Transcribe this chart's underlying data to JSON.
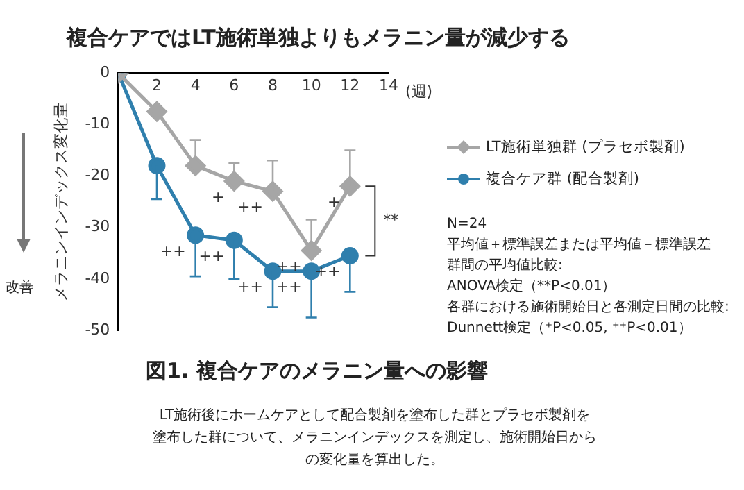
{
  "chart_data": {
    "type": "line",
    "title": "複合ケアではLT施術単独よりもメラニン量が減少する",
    "subtitle": "図1. 複合ケアのメラニン量への影響",
    "xlabel": "(週)",
    "ylabel": "メラニンインデックス変化量",
    "x": [
      0,
      2,
      4,
      6,
      8,
      10,
      12
    ],
    "series": [
      {
        "name": "LT施術単独群 (プラセボ製剤)",
        "color": "#a6a6a6",
        "marker": "diamond",
        "values": [
          0,
          -7.5,
          -18,
          -21,
          -23,
          -34.5,
          -22
        ],
        "errors": [
          null,
          null,
          [
            -18,
            -13
          ],
          [
            -21,
            -17.5
          ],
          [
            -23,
            -17
          ],
          [
            -34.5,
            -28.5
          ],
          [
            -22,
            -15
          ]
        ]
      },
      {
        "name": "複合ケア群 (配合製剤)",
        "color": "#2f7fad",
        "marker": "circle",
        "values": [
          0,
          -18,
          -31.5,
          -32.5,
          -38.5,
          -38.5,
          -35.5
        ],
        "errors": [
          null,
          [
            -24.5,
            -18
          ],
          [
            -39.5,
            -31.5
          ],
          [
            -40,
            -32.5
          ],
          [
            -45.5,
            -38.5
          ],
          [
            -47.5,
            -38.5
          ],
          [
            -42.5,
            -35.5
          ]
        ]
      }
    ],
    "xlim": [
      0,
      14
    ],
    "xticks": [
      {
        "value": 0,
        "label": null
      },
      2,
      4,
      6,
      8,
      10,
      12,
      14
    ],
    "ylim": [
      -50,
      0
    ],
    "yticks": [
      0,
      -10,
      -20,
      -30,
      -40,
      -50
    ],
    "grid": false,
    "legend": "right",
    "annotations": [
      "改善",
      {
        "text": "+",
        "x": 6,
        "y": -21
      },
      {
        "text": "++",
        "x": 8,
        "y": -23
      },
      {
        "text": "++",
        "x": 10,
        "y": -34.5
      },
      {
        "text": "+",
        "x": 12,
        "y": -22
      },
      {
        "text": "++",
        "x": 4,
        "y": -31.5
      },
      {
        "text": "++",
        "x": 6,
        "y": -32.5
      },
      {
        "text": "++",
        "x": 8,
        "y": -38.5
      },
      {
        "text": "++",
        "x": 10,
        "y": -38.5
      },
      {
        "text": "++",
        "x": 12,
        "y": -35.5
      },
      "**",
      "N=24",
      "平均値＋標準誤差または平均値－標準誤差",
      "群間の平均値比較:",
      "ANOVA検定（**P<0.01）",
      "各群における施術開始日と各測定日間の比較:",
      "Dunnett検定（⁺P<0.05, ⁺⁺P<0.01）",
      "LT施術後にホームケアとして配合製剤を塗布した群とプラセボ製剤を塗布した群について、メラニンインデックスを測定し、施術開始日からの変化量を算出した。"
    ]
  }
}
